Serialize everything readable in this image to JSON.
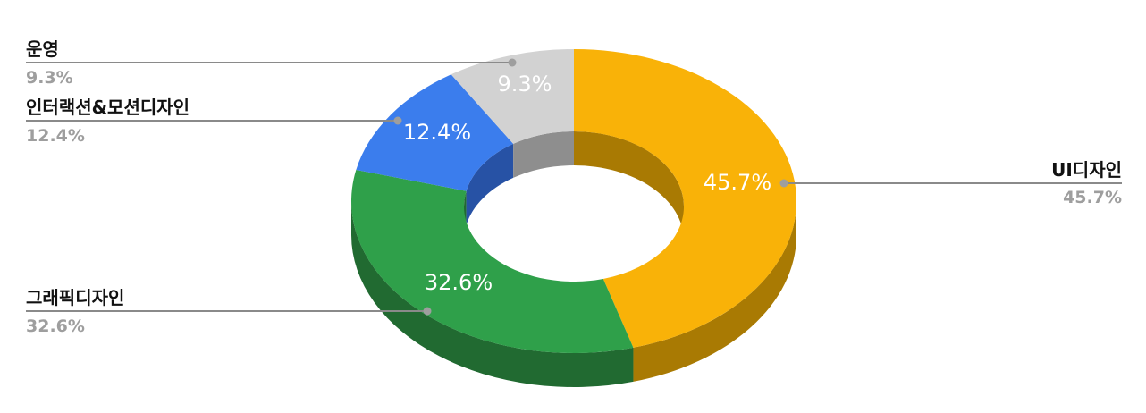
{
  "chart_data": {
    "type": "pie",
    "style": "3d-donut",
    "slices": [
      {
        "name": "UI디자인",
        "value": 45.7,
        "label": "45.7%",
        "color": "#f9b208",
        "side_color": "#a97a03"
      },
      {
        "name": "그래픽디자인",
        "value": 32.6,
        "label": "32.6%",
        "color": "#2fa04a",
        "side_color": "#216a31"
      },
      {
        "name": "인터랙션&모션디자인",
        "value": 12.4,
        "label": "12.4%",
        "color": "#3b7ded",
        "side_color": "#2752a5"
      },
      {
        "name": "운영",
        "value": 9.3,
        "label": "9.3%",
        "color": "#d2d2d2",
        "side_color": "#8e8e8e"
      }
    ],
    "legend": {
      "placement": "side-labels",
      "name_color": "#111111",
      "value_color": "#9e9e9e"
    }
  }
}
